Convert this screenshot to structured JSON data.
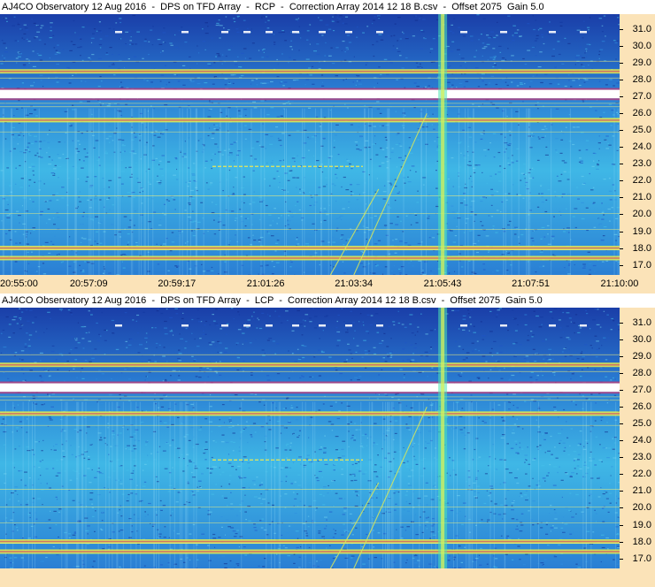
{
  "colors": {
    "background_deep": "#1a3ea8",
    "background_mid": "#2a7fd4",
    "background_light": "#3fb7e6",
    "band_bright": "#ffffff",
    "band_yellow": "#e9f04a",
    "band_magenta": "#d0306a",
    "axis_bg": "#fbe3b8"
  },
  "chart_data": [
    {
      "type": "heatmap",
      "title": "AJ4CO Observatory 12 Aug 2016  -  DPS on TFD Array  -  RCP  -  Correction Array 2014 12 18 B.csv  -  Offset 2075  Gain 5.0",
      "polarization": "RCP",
      "xlabel": "",
      "ylabel": "",
      "x_range": [
        "20:55:00",
        "21:10:00"
      ],
      "x_ticks": [
        "20:55:00",
        "20:57:09",
        "20:59:17",
        "21:01:26",
        "21:03:34",
        "21:05:43",
        "21:07:51",
        "21:10:00"
      ],
      "ylim": [
        16.4,
        31.9
      ],
      "y_ticks": [
        "17.0",
        "18.0",
        "19.0",
        "20.0",
        "21.0",
        "22.0",
        "23.0",
        "24.0",
        "25.0",
        "26.0",
        "27.0",
        "28.0",
        "29.0",
        "30.0",
        "31.0"
      ],
      "features": {
        "bright_band_mhz": [
          27.0,
          27.3
        ],
        "strong_bands_mhz": [
          25.6,
          18.0,
          17.4,
          28.5
        ],
        "burst_time": "21:05:43",
        "drifting_lines": [
          {
            "t_start": "21:03:34",
            "f_start": 16.4,
            "t_end": "21:05:20",
            "f_end": 26.0
          },
          {
            "t_start": "21:03:00",
            "f_start": 16.4,
            "t_end": "21:04:10",
            "f_end": 21.5
          }
        ]
      }
    },
    {
      "type": "heatmap",
      "title": "AJ4CO Observatory 12 Aug 2016  -  DPS on TFD Array  -  LCP  -  Correction Array 2014 12 18 B.csv  -  Offset 2075  Gain 5.0",
      "polarization": "LCP",
      "xlabel": "",
      "ylabel": "",
      "x_range": [
        "20:55:00",
        "21:10:00"
      ],
      "x_ticks": [],
      "ylim": [
        16.4,
        31.9
      ],
      "y_ticks": [
        "17.0",
        "18.0",
        "19.0",
        "20.0",
        "21.0",
        "22.0",
        "23.0",
        "24.0",
        "25.0",
        "26.0",
        "27.0",
        "28.0",
        "29.0",
        "30.0",
        "31.0"
      ],
      "features": {
        "bright_band_mhz": [
          27.0,
          27.3
        ],
        "strong_bands_mhz": [
          25.6,
          18.0,
          17.4,
          28.5
        ],
        "burst_time": "21:05:43",
        "drifting_lines": [
          {
            "t_start": "21:03:34",
            "f_start": 16.4,
            "t_end": "21:05:20",
            "f_end": 26.0
          },
          {
            "t_start": "21:03:00",
            "f_start": 16.4,
            "t_end": "21:04:10",
            "f_end": 21.5
          }
        ]
      }
    }
  ]
}
